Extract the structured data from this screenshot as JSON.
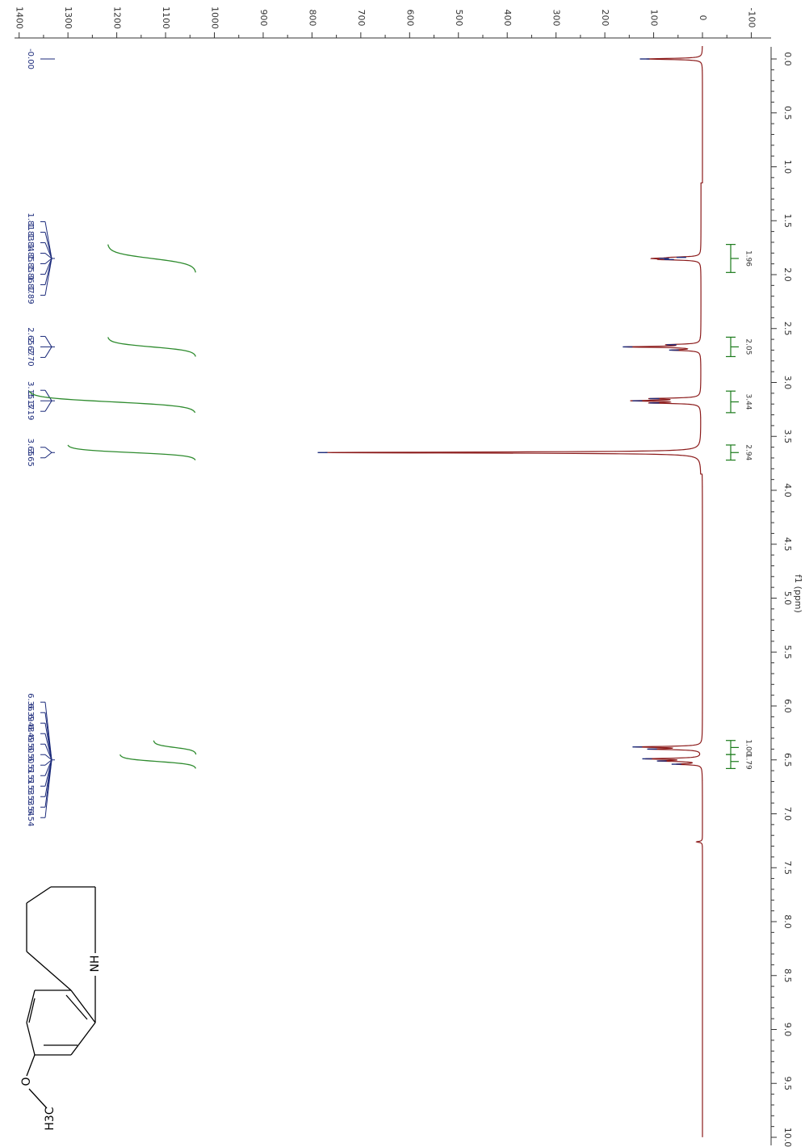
{
  "chart_data": {
    "type": "line",
    "orientation": "rotated-90",
    "xlabel": "f1 (ppm)",
    "xlim": [
      0.0,
      10.0
    ],
    "x_ticks": [
      "0.0",
      "0.5",
      "1.0",
      "1.5",
      "2.0",
      "2.5",
      "3.0",
      "3.5",
      "4.0",
      "4.5",
      "5.0",
      "5.5",
      "6.0",
      "6.5",
      "7.0",
      "7.5",
      "8.0",
      "8.5",
      "9.0",
      "9.5",
      "10.0"
    ],
    "ylim": [
      -100,
      1400
    ],
    "y_ticks": [
      "-100",
      "0",
      "100",
      "200",
      "300",
      "400",
      "500",
      "600",
      "700",
      "800",
      "900",
      "1000",
      "1100",
      "1200",
      "1300",
      "1400"
    ],
    "colors": {
      "spectrum": "#8b1a1a",
      "peak_labels": "#1b2a7a",
      "integral": "#2e8b2e",
      "integral_bracket": "#1a7a1a"
    },
    "series": [
      {
        "peaks": [
          {
            "ppm": 0.0,
            "height": 115
          },
          {
            "ppm": 1.84,
            "height": 40
          },
          {
            "ppm": 1.85,
            "height": 75
          },
          {
            "ppm": 1.86,
            "height": 65
          },
          {
            "ppm": 2.65,
            "height": 60
          },
          {
            "ppm": 2.67,
            "height": 150
          },
          {
            "ppm": 2.7,
            "height": 55
          },
          {
            "ppm": 3.15,
            "height": 95
          },
          {
            "ppm": 3.17,
            "height": 130
          },
          {
            "ppm": 3.19,
            "height": 95
          },
          {
            "ppm": 3.65,
            "height": 775
          },
          {
            "ppm": 6.38,
            "height": 130
          },
          {
            "ppm": 6.4,
            "height": 100
          },
          {
            "ppm": 6.49,
            "height": 110
          },
          {
            "ppm": 6.51,
            "height": 80
          },
          {
            "ppm": 6.54,
            "height": 50
          },
          {
            "ppm": 7.26,
            "height": 12
          }
        ]
      }
    ],
    "peak_labels": {
      "group_0": [
        "-0.00"
      ],
      "group_1": [
        "1.81",
        "1.83",
        "1.84",
        "1.85",
        "1.85",
        "1.86",
        "1.87",
        "1.89"
      ],
      "group_2": [
        "2.65",
        "2.67",
        "2.70"
      ],
      "group_3": [
        "3.15",
        "3.17",
        "3.19"
      ],
      "group_4": [
        "3.65",
        "3.65"
      ],
      "group_5": [
        "6.36",
        "6.39",
        "6.48",
        "6.49",
        "6.50",
        "6.50",
        "6.51",
        "6.51",
        "6.53",
        "6.53",
        "6.54",
        "6.54"
      ]
    },
    "integrals": [
      {
        "from": 1.72,
        "to": 1.98,
        "value": "1.96"
      },
      {
        "from": 2.58,
        "to": 2.76,
        "value": "2.05"
      },
      {
        "from": 3.08,
        "to": 3.28,
        "value": "3.44"
      },
      {
        "from": 3.58,
        "to": 3.72,
        "value": "2.94"
      },
      {
        "from": 6.32,
        "to": 6.45,
        "value": "1.00"
      },
      {
        "from": 6.45,
        "to": 6.58,
        "value": "1.79"
      }
    ],
    "structure": {
      "labels": [
        "H3C",
        "O",
        "NH"
      ]
    }
  }
}
